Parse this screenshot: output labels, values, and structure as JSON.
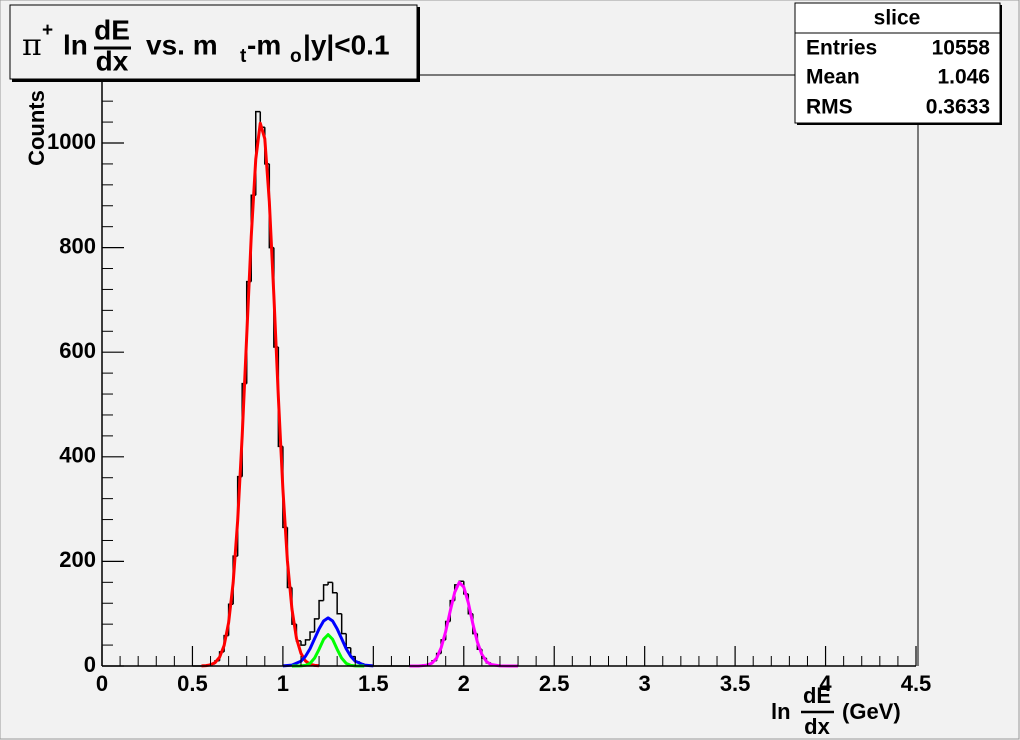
{
  "chart_data": {
    "type": "histogram",
    "title": [
      "π",
      "+",
      "ln",
      "dE",
      "dx",
      "vs. m",
      "t",
      "-m",
      "o",
      "|y|<0.1"
    ],
    "xlabel": [
      "ln",
      "dE",
      "dx",
      "(GeV)"
    ],
    "ylabel": "Counts",
    "color": "#000000",
    "bins": [
      0.5,
      0.525,
      0.55,
      0.575,
      0.6,
      0.625,
      0.65,
      0.675,
      0.7,
      0.725,
      0.75,
      0.775,
      0.8,
      0.825,
      0.85,
      0.875,
      0.9,
      0.925,
      0.95,
      0.975,
      1.0,
      1.025,
      1.05,
      1.075,
      1.1,
      1.125,
      1.15,
      1.175,
      1.2,
      1.225,
      1.25,
      1.275,
      1.3,
      1.325,
      1.35,
      1.375,
      1.4,
      1.425,
      1.45,
      1.475,
      1.5,
      1.525,
      1.55,
      1.575,
      1.6,
      1.625,
      1.65,
      1.675,
      1.7,
      1.725,
      1.75,
      1.775,
      1.8,
      1.825,
      1.85,
      1.875,
      1.9,
      1.925,
      1.95,
      1.975,
      2.0,
      2.025,
      2.05,
      2.075,
      2.1,
      2.125,
      2.15,
      2.175,
      2.2,
      2.225,
      2.25,
      2.275,
      2.3
    ],
    "values": [
      0,
      0,
      0,
      1,
      4,
      10,
      27,
      58,
      118,
      210,
      362,
      540,
      735,
      900,
      1060,
      1030,
      960,
      800,
      610,
      420,
      265,
      150,
      80,
      48,
      40,
      50,
      65,
      90,
      125,
      155,
      160,
      140,
      100,
      62,
      35,
      18,
      8,
      4,
      2,
      1,
      0,
      0,
      0,
      0,
      0,
      0,
      0,
      0,
      0,
      0,
      1,
      2,
      4,
      10,
      24,
      50,
      85,
      125,
      155,
      162,
      138,
      100,
      62,
      32,
      15,
      6,
      2,
      1,
      0,
      0,
      0,
      0
    ],
    "series": [
      {
        "color": "#ff0000",
        "x": [
          0.55,
          0.575,
          0.6,
          0.625,
          0.65,
          0.675,
          0.7,
          0.725,
          0.75,
          0.775,
          0.8,
          0.825,
          0.85,
          0.875,
          0.9,
          0.925,
          0.95,
          0.975,
          1.0,
          1.025,
          1.05,
          1.075,
          1.1,
          1.125,
          1.15,
          1.175,
          1.2
        ],
        "values": [
          0.2,
          0.7,
          2.3,
          6.5,
          16.7,
          39,
          83,
          159,
          278,
          440,
          631,
          821,
          969,
          1038,
          1008,
          888,
          709,
          514,
          338,
          201,
          109,
          53,
          24,
          9.6,
          3.5,
          1.2,
          0.4
        ]
      },
      {
        "color": "#0000ff",
        "x": [
          1.0,
          1.05,
          1.1,
          1.125,
          1.15,
          1.175,
          1.2,
          1.225,
          1.25,
          1.275,
          1.3,
          1.325,
          1.35,
          1.375,
          1.4,
          1.45,
          1.5
        ],
        "values": [
          0.2,
          1.6,
          9.2,
          18.7,
          33,
          52,
          71,
          86,
          92,
          86,
          71,
          52,
          33,
          18.7,
          9.2,
          1.6,
          0.2
        ]
      },
      {
        "color": "#00ff00",
        "x": [
          1.05,
          1.1,
          1.125,
          1.15,
          1.175,
          1.2,
          1.225,
          1.25,
          1.275,
          1.3,
          1.325,
          1.35,
          1.375,
          1.4,
          1.45
        ],
        "values": [
          0,
          0.2,
          1.3,
          5.1,
          15,
          32,
          51,
          60,
          51,
          32,
          15,
          5.1,
          1.3,
          0.2,
          0
        ]
      },
      {
        "color": "#ff00ff",
        "x": [
          1.7,
          1.75,
          1.8,
          1.825,
          1.85,
          1.875,
          1.9,
          1.925,
          1.95,
          1.975,
          2.0,
          2.025,
          2.05,
          2.075,
          2.1,
          2.125,
          2.15,
          2.2,
          2.25,
          2.3
        ],
        "values": [
          0,
          0.1,
          1.8,
          5.7,
          15,
          35,
          66,
          105,
          141,
          160,
          151,
          121,
          81,
          46,
          22,
          8.7,
          2.9,
          0.2,
          0,
          0
        ]
      }
    ],
    "xlim": [
      0,
      4.5
    ],
    "ylim": [
      0,
      1130
    ],
    "xticks": [
      0,
      0.5,
      1,
      1.5,
      2,
      2.5,
      3,
      3.5,
      4,
      4.5
    ],
    "yticks": [
      0,
      200,
      400,
      600,
      800,
      1000
    ],
    "stats": {
      "title": "slice",
      "entries": [
        {
          "name": "Entries",
          "value": 10558
        },
        {
          "name": "Mean",
          "value": 1.046
        },
        {
          "name": "RMS",
          "value": 0.3633
        }
      ]
    }
  }
}
